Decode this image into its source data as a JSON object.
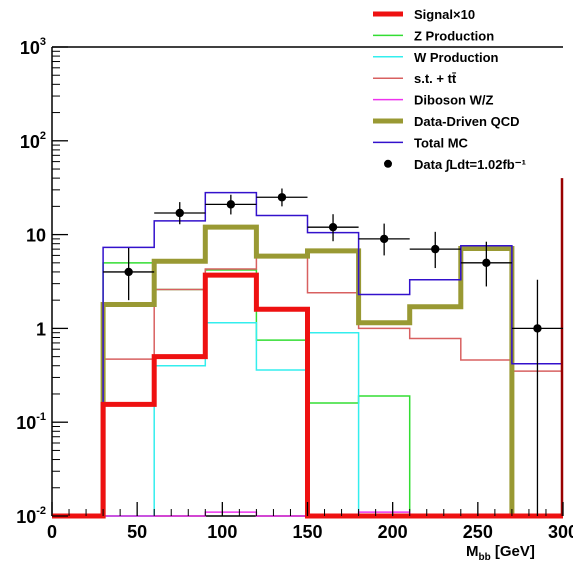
{
  "chart_data": {
    "type": "histogram",
    "xlabel_main": "M",
    "xlabel_sub": "bb",
    "xlabel_unit": "[GeV]",
    "ylabel": "",
    "xlim": [
      0,
      300
    ],
    "ylim": [
      0.01,
      1000
    ],
    "y_scale": "log",
    "grid": false,
    "legend_position": "top-right",
    "x_ticks": [
      0,
      50,
      100,
      150,
      200,
      250,
      300
    ],
    "y_ticks": [
      {
        "value": 0.01,
        "base": "10",
        "exp": "-2"
      },
      {
        "value": 0.1,
        "base": "10",
        "exp": "-1"
      },
      {
        "value": 1,
        "base": "1",
        "exp": ""
      },
      {
        "value": 10,
        "base": "10",
        "exp": ""
      },
      {
        "value": 100,
        "base": "10",
        "exp": "2"
      },
      {
        "value": 1000,
        "base": "10",
        "exp": "3"
      }
    ],
    "bin_edges": [
      0,
      30,
      60,
      90,
      120,
      150,
      180,
      210,
      240,
      270,
      300
    ],
    "series": [
      {
        "name": "Z Production",
        "color": "#33dd33",
        "width": 1.5,
        "values": [
          0.01,
          5.0,
          2.6,
          4.2,
          0.75,
          0.16,
          0.19,
          0.01,
          0.01,
          0.01
        ]
      },
      {
        "name": "W Production",
        "color": "#33eeee",
        "width": 1.5,
        "values": [
          0.01,
          0.01,
          0.4,
          1.15,
          0.36,
          0.9,
          0.01,
          0.01,
          0.01,
          0.01
        ]
      },
      {
        "name": "s.t. + tt̄",
        "color": "#d86060",
        "width": 1.5,
        "values": [
          0.01,
          0.47,
          2.6,
          4.3,
          5.7,
          2.4,
          1.0,
          0.78,
          0.46,
          0.35
        ]
      },
      {
        "name": "Diboson W/Z",
        "color": "#ee33ee",
        "width": 1.5,
        "values": [
          0.01,
          0.01,
          0.01,
          0.011,
          0.01,
          0.01,
          0.011,
          0.01,
          0.01,
          0.01
        ]
      },
      {
        "name": "Data-Driven QCD",
        "color": "#999933",
        "width": 5,
        "values": [
          0.01,
          1.8,
          5.2,
          12.0,
          5.9,
          6.7,
          1.15,
          1.7,
          7.1,
          0.01
        ]
      },
      {
        "name": "Total MC",
        "color": "#3311cc",
        "width": 1.5,
        "values": [
          0.01,
          7.3,
          14.0,
          28.0,
          16.0,
          10.5,
          2.3,
          3.3,
          7.6,
          0.42
        ]
      },
      {
        "name": "Signal×10",
        "color": "#ee1111",
        "width": 5,
        "values": [
          0.01,
          0.155,
          0.5,
          3.7,
          1.6,
          0.01,
          0.01,
          0.01,
          0.01,
          0.01
        ]
      }
    ],
    "data_points": {
      "name": "Data",
      "x": [
        45,
        75,
        105,
        135,
        165,
        195,
        225,
        255,
        285
      ],
      "y": [
        4.0,
        17.0,
        21.0,
        25.0,
        12.0,
        9.0,
        7.0,
        5.0,
        1.0
      ],
      "yerr_low": [
        2.0,
        4.1,
        4.6,
        5.0,
        3.5,
        3.0,
        2.6,
        2.2,
        0.99
      ],
      "yerr_high": [
        3.2,
        5.2,
        5.6,
        6.0,
        4.5,
        4.1,
        3.7,
        3.4,
        2.3
      ]
    },
    "legend": [
      {
        "label": "Signal×10",
        "color": "#ee1111",
        "width": 5,
        "marker": "line"
      },
      {
        "label": "Z Production",
        "color": "#33dd33",
        "width": 1.5,
        "marker": "line"
      },
      {
        "label": "W Production",
        "color": "#33eeee",
        "width": 1.5,
        "marker": "line"
      },
      {
        "label": "s.t. + tt̄",
        "color": "#d86060",
        "width": 1.5,
        "marker": "line"
      },
      {
        "label": "Diboson W/Z",
        "color": "#ee33ee",
        "width": 1.5,
        "marker": "line"
      },
      {
        "label": "Data-Driven QCD",
        "color": "#999933",
        "width": 5,
        "marker": "line"
      },
      {
        "label": "Total MC",
        "color": "#3311cc",
        "width": 1.5,
        "marker": "line"
      },
      {
        "label": "Data ∫Ldt=1.02fb⁻¹",
        "color": "#000000",
        "width": 0,
        "marker": "dot"
      }
    ],
    "extra_line": {
      "x": 300,
      "color": "#990000"
    }
  }
}
